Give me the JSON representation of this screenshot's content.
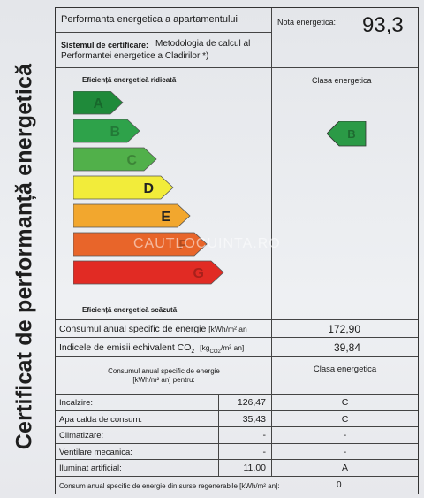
{
  "vertical_title": "Certificat de performanță energetică",
  "header": {
    "title": "Performanta energetica a apartamentului",
    "nota_label": "Nota energetica:",
    "nota_value": "93,3",
    "system_label": "Sistemul de certificare:",
    "system_text": "Metodologia de calcul al",
    "system_text2": "Performantei energetice a Cladirilor  *)"
  },
  "scale": {
    "top_label": "Eficiență energetică ridicată",
    "bottom_label": "Eficiență energetică scăzută",
    "class_header": "Clasa energetica",
    "classes": [
      "A",
      "B",
      "C",
      "D",
      "E",
      "F",
      "G"
    ],
    "colors": [
      "#1f8a3a",
      "#2ea24a",
      "#51b04a",
      "#f2ec3a",
      "#f2a72e",
      "#e8652a",
      "#e12b24"
    ],
    "current_class": "B",
    "current_color": "#2b9a46"
  },
  "watermark": "CAUTLOCUINTA.RO",
  "consumption": {
    "label": "Consumul anual specific de energie",
    "unit": "[kWh/m² an",
    "value": "172,90"
  },
  "emissions": {
    "label": "Indicele de emisii echivalent CO",
    "sub": "2",
    "unit": "[kg",
    "unit_sub": "CO2",
    "unit_end": "/m² an]",
    "value": "39,84"
  },
  "table": {
    "header_left": "Consumul anual specific de energie",
    "header_left2": "[kWh/m² an] pentru:",
    "header_right": "Clasa energetica",
    "rows": [
      {
        "label": "Incalzire:",
        "value": "126,47",
        "clasa": "C"
      },
      {
        "label": "Apa calda de consum:",
        "value": "35,43",
        "clasa": "C"
      },
      {
        "label": "Climatizare:",
        "value": "-",
        "clasa": "-"
      },
      {
        "label": "Ventilare mecanica:",
        "value": "-",
        "clasa": "-"
      },
      {
        "label": "Iluminat artificial:",
        "value": "11,00",
        "clasa": "A"
      }
    ],
    "footer_label": "Consum anual specific de energie din surse regenerabile [kWh/m² an]:",
    "footer_value": "0"
  }
}
